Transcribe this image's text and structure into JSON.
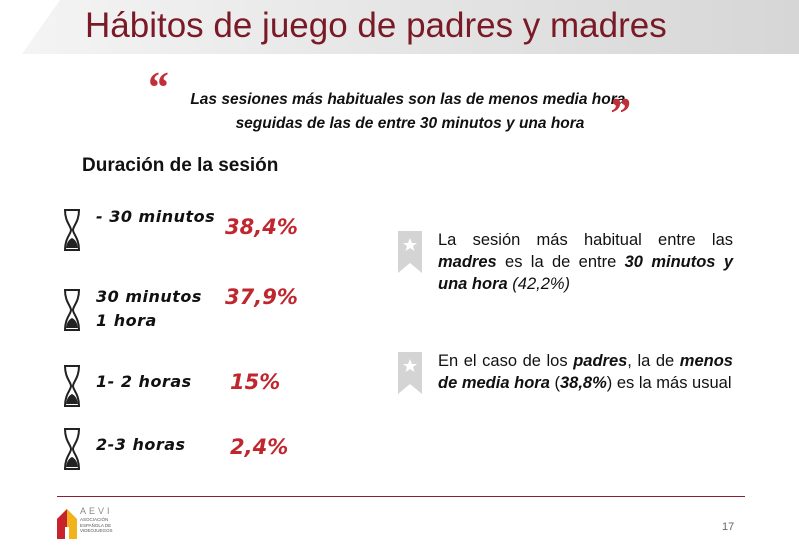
{
  "title": "Hábitos de juego de padres y madres",
  "quote": {
    "lines": [
      "Las sesiones más habituales son las de menos media hora,",
      "seguidas de las de entre 30 minutos y una hora"
    ]
  },
  "heading": "Duración de la sesión",
  "items": [
    {
      "label": "- 30 minutos",
      "value": "38,4%"
    },
    {
      "label": "30 minutos 1 hora",
      "value": "37,9%"
    },
    {
      "label": "1- 2 horas",
      "value": "15%"
    },
    {
      "label": "2-3 horas",
      "value": "2,4%"
    }
  ],
  "notes": [
    [
      {
        "text": "La sesión más habitual entre las ",
        "em": false
      },
      {
        "text": "madres",
        "em": true
      },
      {
        "text": " es la de entre ",
        "em": false
      },
      {
        "text": "30 minutos y una hora",
        "em": true
      },
      {
        "text": " (42,2%)",
        "em": "italic"
      }
    ],
    [
      {
        "text": "En el caso de los ",
        "em": false
      },
      {
        "text": "padres",
        "em": true
      },
      {
        "text": ", la de ",
        "em": false
      },
      {
        "text": "menos de media hora",
        "em": true
      },
      {
        "text": " (",
        "em": false
      },
      {
        "text": "38,8%",
        "em": true
      },
      {
        "text": ") es la más usual",
        "em": false
      }
    ]
  ],
  "logo": {
    "name": "AEVI",
    "subtitle": "ASOCIACIÓN ESPAÑOLA DE VIDEOJUEGOS"
  },
  "page_number": "17"
}
